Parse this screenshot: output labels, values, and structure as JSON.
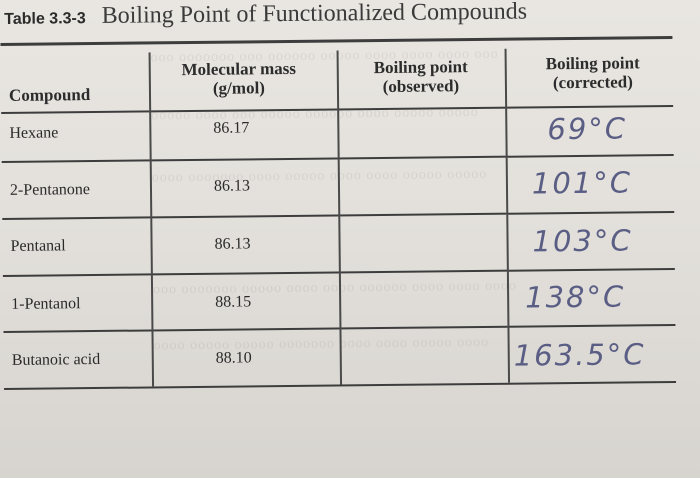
{
  "table": {
    "label": "Table 3.3-3",
    "title": "Boiling Point of Functionalized Compounds",
    "headers": {
      "compound": "Compound",
      "mass_line1": "Molecular mass",
      "mass_line2": "(g/mol)",
      "observed_line1": "Boiling point",
      "observed_line2": "(observed)",
      "corrected_line1": "Boiling point",
      "corrected_line2": "(corrected)"
    },
    "rows": [
      {
        "compound": "Hexane",
        "mass": "86.17",
        "corrected": "69°C"
      },
      {
        "compound": "2-Pentanone",
        "mass": "86.13",
        "corrected": "101°C"
      },
      {
        "compound": "Pentanal",
        "mass": "86.13",
        "corrected": "103°C"
      },
      {
        "compound": "1-Pentanol",
        "mass": "88.15",
        "corrected": "138°C"
      },
      {
        "compound": "Butanoic acid",
        "mass": "88.10",
        "corrected": "163.5°C"
      }
    ]
  },
  "colors": {
    "ink": "#262626",
    "handwriting": "#5a5e84",
    "paper": "#e6e3de"
  }
}
